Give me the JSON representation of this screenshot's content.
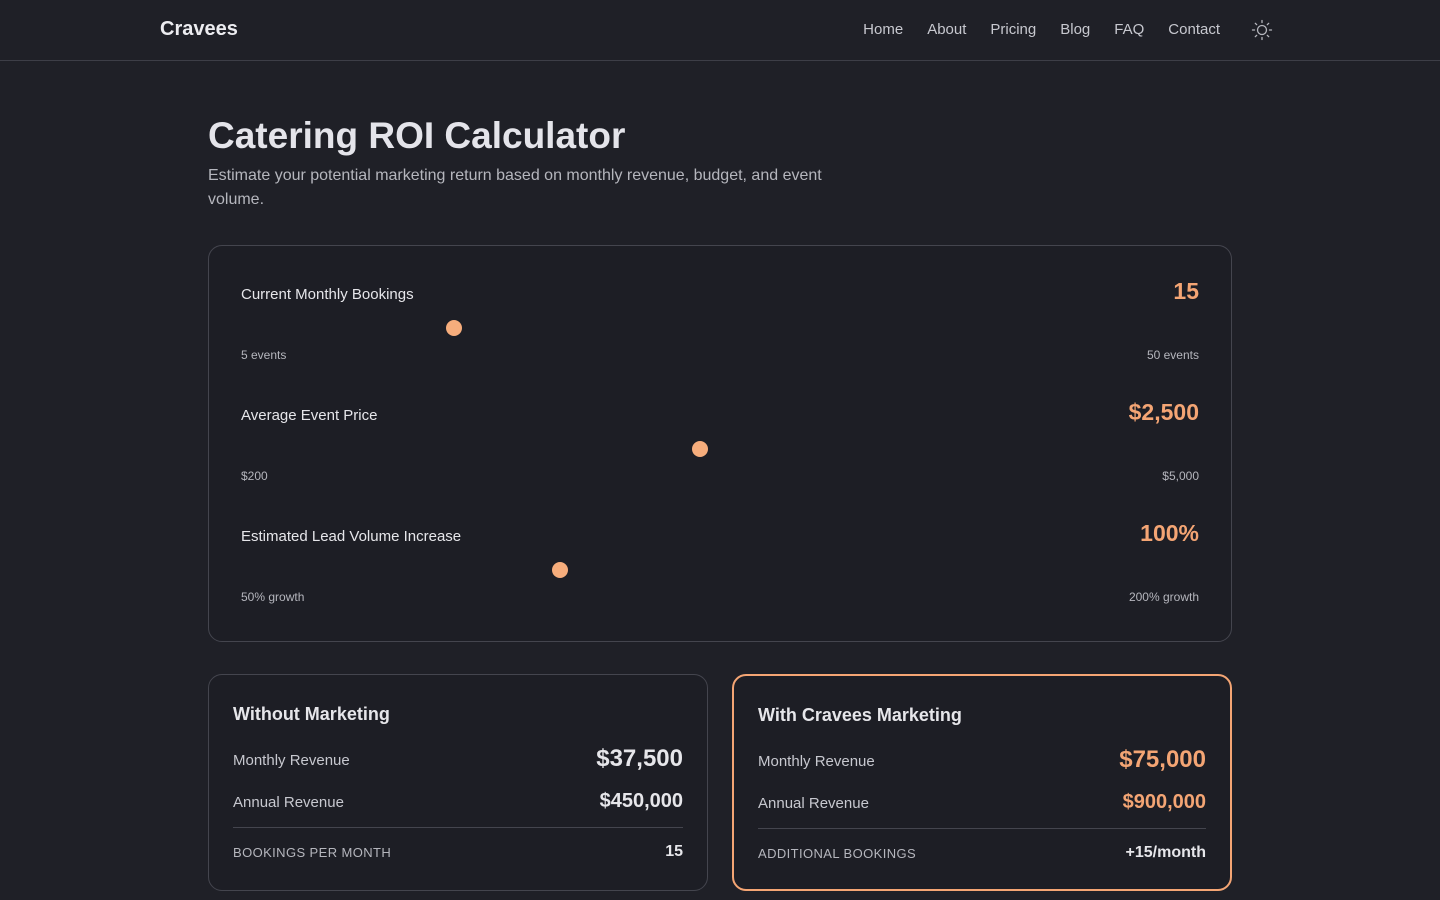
{
  "nav": {
    "brand": "Cravees",
    "links": [
      "Home",
      "About",
      "Pricing",
      "Blog",
      "FAQ",
      "Contact"
    ],
    "theme_icon": "sun-icon"
  },
  "hero": {
    "title": "Catering ROI Calculator",
    "subtitle": "Estimate your potential marketing return based on monthly revenue, budget, and event volume."
  },
  "calculator": {
    "sliders": [
      {
        "label": "Current Monthly Bookings",
        "value_text": "15",
        "value": 15,
        "min": 5,
        "max": 50,
        "min_label": "5 events",
        "max_label": "50 events"
      },
      {
        "label": "Average Event Price",
        "value_text": "$2,500",
        "value": 2500,
        "min": 200,
        "max": 5000,
        "min_label": "$200",
        "max_label": "$5,000"
      },
      {
        "label": "Estimated Lead Volume Increase",
        "value_text": "100%",
        "value": 100,
        "min": 50,
        "max": 200,
        "min_label": "50% growth",
        "max_label": "200% growth"
      }
    ]
  },
  "results": {
    "without": {
      "title": "Without Marketing",
      "monthly_label": "Monthly Revenue",
      "monthly_value": "$37,500",
      "annual_label": "Annual Revenue",
      "annual_value": "$450,000",
      "foot_label": "BOOKINGS PER MONTH",
      "foot_value": "15"
    },
    "with": {
      "title": "With Cravees Marketing",
      "monthly_label": "Monthly Revenue",
      "monthly_value": "$75,000",
      "annual_label": "Annual Revenue",
      "annual_value": "$900,000",
      "foot_label": "ADDITIONAL BOOKINGS",
      "foot_value": "+15/month"
    }
  },
  "colors": {
    "accent": "#f4a574",
    "background": "#1f2027",
    "card": "#1d1e25",
    "border": "#44454e"
  }
}
